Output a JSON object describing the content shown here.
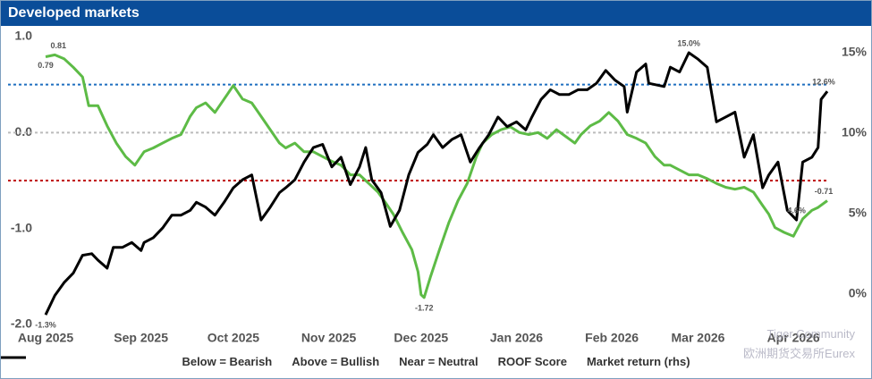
{
  "chart_data": {
    "type": "line",
    "title": "Developed markets",
    "xlim": [
      0,
      254
    ],
    "xticks": [
      {
        "value": 0,
        "label": "Aug 2025"
      },
      {
        "value": 31,
        "label": "Sep 2025"
      },
      {
        "value": 61,
        "label": "Oct 2025"
      },
      {
        "value": 92,
        "label": "Nov 2025"
      },
      {
        "value": 122,
        "label": "Dec 2025"
      },
      {
        "value": 153,
        "label": "Jan 2026"
      },
      {
        "value": 184,
        "label": "Feb 2026"
      },
      {
        "value": 212,
        "label": "Mar 2026"
      },
      {
        "value": 243,
        "label": "Apr 2026"
      }
    ],
    "ylim": [
      -2.0,
      1.0
    ],
    "yticks": [
      {
        "value": 1.0,
        "label": "1.0"
      },
      {
        "value": 0.0,
        "label": "0.0"
      },
      {
        "value": -1.0,
        "label": "-1.0"
      },
      {
        "value": -2.0,
        "label": "-2.0"
      }
    ],
    "y2lim": [
      -1.9,
      16
    ],
    "y2ticks": [
      {
        "value": 15,
        "label": "15%"
      },
      {
        "value": 10,
        "label": "10%"
      },
      {
        "value": 5,
        "label": "5%"
      },
      {
        "value": 0,
        "label": "0%"
      }
    ],
    "ref_lines": [
      {
        "name": "Below = Bearish",
        "value": -0.5,
        "color": "#c00000"
      },
      {
        "name": "Above = Bullish",
        "value": 0.5,
        "color": "#1f6fc0"
      },
      {
        "name": "Near = Neutral",
        "value": 0.0,
        "color": "#bbbbbb"
      }
    ],
    "series": [
      {
        "name": "ROOF Score",
        "color": "#5dbb46",
        "x": [
          0,
          3,
          6,
          9,
          12,
          14,
          17,
          20,
          23,
          26,
          29,
          32,
          35,
          38,
          41,
          44,
          47,
          49,
          52,
          55,
          58,
          61,
          64,
          67,
          70,
          73,
          76,
          78,
          81,
          84,
          87,
          90,
          93,
          96,
          99,
          102,
          105,
          108,
          110,
          113,
          116,
          119,
          121,
          122,
          123,
          125,
          128,
          131,
          134,
          137,
          140,
          142,
          145,
          148,
          151,
          154,
          157,
          160,
          163,
          166,
          169,
          172,
          174,
          177,
          180,
          183,
          186,
          189,
          192,
          195,
          198,
          201,
          203,
          206,
          209,
          212,
          215,
          218,
          221,
          224,
          227,
          230,
          233,
          235,
          237,
          240,
          243,
          246,
          249,
          251,
          254
        ],
        "values": [
          0.79,
          0.81,
          0.77,
          0.68,
          0.58,
          0.28,
          0.28,
          0.07,
          -0.11,
          -0.25,
          -0.34,
          -0.2,
          -0.16,
          -0.11,
          -0.06,
          -0.02,
          0.17,
          0.26,
          0.31,
          0.21,
          0.35,
          0.49,
          0.35,
          0.31,
          0.17,
          0.03,
          -0.11,
          -0.16,
          -0.11,
          -0.2,
          -0.2,
          -0.25,
          -0.3,
          -0.34,
          -0.44,
          -0.44,
          -0.53,
          -0.62,
          -0.71,
          -0.85,
          -1.04,
          -1.22,
          -1.45,
          -1.69,
          -1.72,
          -1.51,
          -1.22,
          -0.94,
          -0.71,
          -0.53,
          -0.25,
          -0.11,
          -0.02,
          0.03,
          0.06,
          0.0,
          -0.02,
          0.0,
          -0.06,
          0.03,
          -0.04,
          -0.11,
          -0.02,
          0.07,
          0.12,
          0.21,
          0.12,
          -0.02,
          -0.06,
          -0.11,
          -0.25,
          -0.34,
          -0.34,
          -0.39,
          -0.44,
          -0.44,
          -0.48,
          -0.53,
          -0.57,
          -0.59,
          -0.57,
          -0.62,
          -0.76,
          -0.85,
          -0.99,
          -1.04,
          -1.08,
          -0.9,
          -0.81,
          -0.78,
          -0.71
        ],
        "value_labels": [
          "0.79",
          "0.81",
          null,
          null,
          null,
          null,
          null,
          null,
          null,
          null,
          null,
          null,
          null,
          null,
          null,
          null,
          null,
          null,
          null,
          null,
          null,
          null,
          null,
          null,
          null,
          null,
          null,
          null,
          null,
          null,
          null,
          null,
          null,
          null,
          null,
          null,
          null,
          null,
          null,
          null,
          null,
          null,
          null,
          null,
          "-1.72",
          null,
          null,
          null,
          null,
          null,
          null,
          null,
          null,
          null,
          null,
          null,
          null,
          null,
          null,
          null,
          null,
          null,
          null,
          null,
          null,
          null,
          null,
          null,
          null,
          null,
          null,
          null,
          null,
          null,
          null,
          null,
          null,
          null,
          null,
          null,
          null,
          null,
          null,
          null,
          null,
          null,
          null,
          null,
          null,
          null,
          "-0.71"
        ]
      },
      {
        "name": "Market return (rhs)",
        "color": "#000000",
        "axis": "y2",
        "x": [
          0,
          3,
          6,
          9,
          12,
          15,
          17,
          20,
          22,
          25,
          28,
          31,
          32,
          35,
          38,
          41,
          44,
          47,
          49,
          52,
          55,
          58,
          61,
          64,
          67,
          70,
          73,
          76,
          78,
          81,
          84,
          87,
          90,
          93,
          96,
          99,
          102,
          104,
          106,
          109,
          112,
          115,
          118,
          121,
          124,
          126,
          129,
          132,
          135,
          138,
          141,
          144,
          147,
          150,
          153,
          156,
          158,
          161,
          164,
          167,
          170,
          173,
          176,
          179,
          182,
          185,
          188,
          189,
          192,
          195,
          196,
          201,
          203,
          206,
          209,
          212,
          215,
          218,
          221,
          224,
          227,
          230,
          233,
          235,
          238,
          241,
          244,
          246,
          249,
          251,
          252,
          254
        ],
        "values": [
          -1.3,
          -0.1,
          0.7,
          1.3,
          2.4,
          2.5,
          2.1,
          1.6,
          2.9,
          2.9,
          3.2,
          2.7,
          3.2,
          3.5,
          4.1,
          4.9,
          4.9,
          5.2,
          5.7,
          5.4,
          4.9,
          5.7,
          6.6,
          7.1,
          7.4,
          4.6,
          5.4,
          6.3,
          6.6,
          7.1,
          8.2,
          9.1,
          9.3,
          7.9,
          8.5,
          6.8,
          7.9,
          9.1,
          7.1,
          6.3,
          4.2,
          5.2,
          7.4,
          8.8,
          9.3,
          9.9,
          9.1,
          9.6,
          9.9,
          8.2,
          9.1,
          9.9,
          11.0,
          10.4,
          10.7,
          10.2,
          11.0,
          12.1,
          12.7,
          12.4,
          12.4,
          12.7,
          12.7,
          13.1,
          13.9,
          13.3,
          12.9,
          11.3,
          13.8,
          14.3,
          13.1,
          12.9,
          14.1,
          13.8,
          15.0,
          14.6,
          14.1,
          10.7,
          11.0,
          11.3,
          8.5,
          9.9,
          6.6,
          7.4,
          8.2,
          5.2,
          4.6,
          8.2,
          8.5,
          9.1,
          12.1,
          12.6
        ],
        "value_labels": [
          "-1.3%",
          null,
          null,
          null,
          null,
          null,
          null,
          null,
          null,
          null,
          null,
          null,
          null,
          null,
          null,
          null,
          null,
          null,
          null,
          null,
          null,
          null,
          null,
          null,
          null,
          null,
          null,
          null,
          null,
          null,
          null,
          null,
          null,
          null,
          null,
          null,
          null,
          null,
          null,
          null,
          null,
          null,
          null,
          null,
          null,
          null,
          null,
          null,
          null,
          null,
          null,
          null,
          null,
          null,
          null,
          null,
          null,
          null,
          null,
          null,
          null,
          null,
          null,
          null,
          null,
          null,
          null,
          null,
          null,
          null,
          null,
          null,
          null,
          null,
          "15.0%",
          null,
          null,
          null,
          null,
          null,
          null,
          null,
          null,
          null,
          null,
          null,
          "4.6%",
          null,
          null,
          null,
          null,
          "12.6%"
        ]
      }
    ],
    "watermark": [
      "Tiger Community",
      "欧洲期货交易所Eurex"
    ]
  }
}
